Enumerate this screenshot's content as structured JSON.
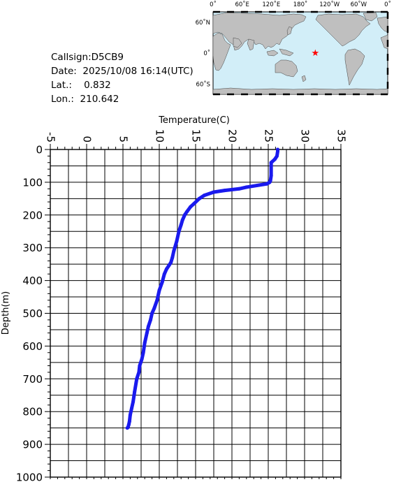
{
  "info": {
    "callsign": "Callsign:D5CB9",
    "date": "Date:  2025/10/08 16:14(UTC)",
    "lat": "Lat.:    0.832",
    "lon": "Lon.:  210.642"
  },
  "map": {
    "lon_labels": [
      "0˚",
      "60˚E",
      "120˚E",
      "180˚",
      "120˚W",
      "60˚W",
      "0˚"
    ],
    "lat_labels": [
      "60˚N",
      "0˚",
      "60˚S"
    ],
    "station": {
      "lat": 0.832,
      "lon": 210.642
    },
    "colors": {
      "ocean": "#d2eef8",
      "land": "#bfbfbf",
      "marker": "#ff0000"
    }
  },
  "chart_data": {
    "type": "line",
    "xlabel": "Temperature(C)",
    "ylabel": "Depth(m)",
    "xlim": [
      -5,
      35
    ],
    "ylim": [
      1000,
      0
    ],
    "x_ticks": [
      "-5",
      "0",
      "5",
      "10",
      "15",
      "20",
      "25",
      "30",
      "35"
    ],
    "y_ticks": [
      "0",
      "100",
      "200",
      "300",
      "400",
      "500",
      "600",
      "700",
      "800",
      "900",
      "1000"
    ],
    "grid": true,
    "color": "#1a1aee",
    "series": [
      {
        "x": [
          26.3,
          26.3,
          26.2,
          25.9,
          25.4,
          25.4,
          25.3,
          25.2,
          24.8,
          22.0,
          21.0,
          19.0,
          17.5,
          16.2,
          15.5,
          14.8,
          14.3,
          13.8,
          13.5,
          13.2,
          13.0,
          12.7,
          12.4,
          12.0,
          11.8,
          11.6,
          11.3,
          11.0,
          10.7,
          10.4,
          10.0,
          9.7,
          9.3,
          9.0,
          8.8,
          8.5,
          8.3,
          8.0,
          7.8,
          7.6,
          7.3,
          7.2,
          6.9,
          6.6,
          6.4,
          6.2,
          6.0,
          5.9,
          5.8,
          5.7,
          5.6
        ],
        "y": [
          0,
          5,
          20,
          30,
          40,
          80,
          95,
          100,
          105,
          115,
          120,
          125,
          130,
          140,
          150,
          165,
          175,
          190,
          200,
          215,
          230,
          250,
          280,
          310,
          330,
          345,
          355,
          365,
          380,
          405,
          430,
          460,
          485,
          500,
          520,
          540,
          560,
          590,
          620,
          640,
          660,
          680,
          700,
          740,
          770,
          790,
          810,
          830,
          840,
          848,
          850
        ]
      }
    ]
  }
}
